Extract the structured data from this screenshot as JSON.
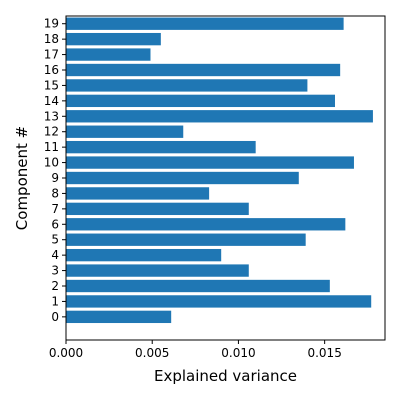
{
  "chart_data": {
    "type": "bar",
    "orientation": "horizontal",
    "title": "",
    "xlabel": "Explained variance",
    "ylabel": "Component #",
    "xlim": [
      0,
      0.0185
    ],
    "ylim": [
      -1.5,
      19.5
    ],
    "grid": false,
    "legend": "none",
    "bar_color": "#1f77b4",
    "xticks": [
      0.0,
      0.005,
      0.01,
      0.015
    ],
    "xtick_labels": [
      "0.000",
      "0.005",
      "0.010",
      "0.015"
    ],
    "categories": [
      "0",
      "1",
      "2",
      "3",
      "4",
      "5",
      "6",
      "7",
      "8",
      "9",
      "10",
      "11",
      "12",
      "13",
      "14",
      "15",
      "16",
      "17",
      "18",
      "19"
    ],
    "values": [
      0.0061,
      0.0177,
      0.0153,
      0.0106,
      0.009,
      0.0139,
      0.0162,
      0.0106,
      0.0083,
      0.0135,
      0.0167,
      0.011,
      0.0068,
      0.0178,
      0.0156,
      0.014,
      0.0159,
      0.0049,
      0.0055,
      0.0161
    ]
  }
}
